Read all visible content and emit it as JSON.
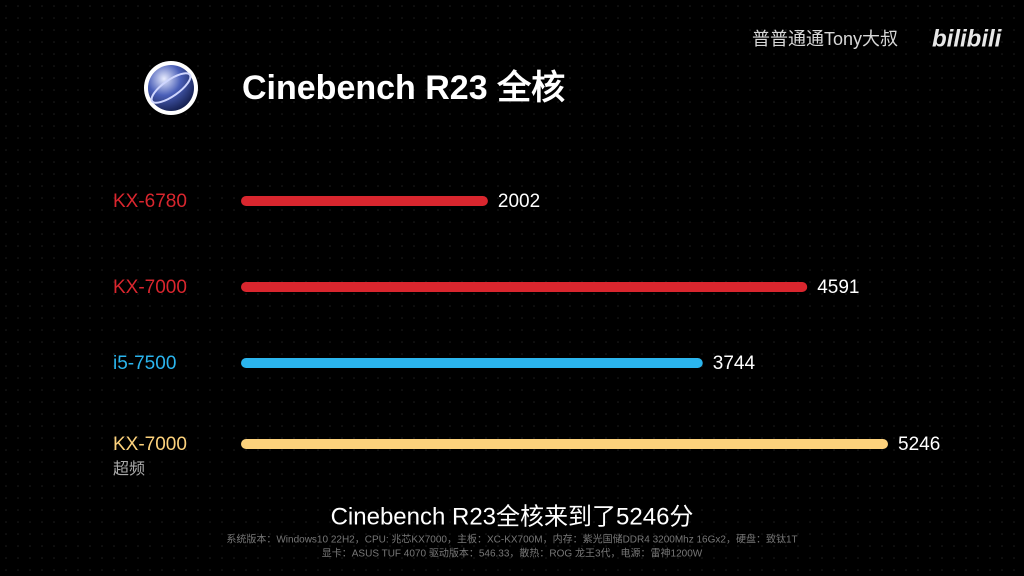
{
  "chart_data": {
    "type": "bar",
    "orientation": "horizontal",
    "title": "Cinebench R23 全核",
    "watermark": "普普通通Tony大叔",
    "platform": "bilibili",
    "caption": "Cinebench R23全核来到了5246分",
    "notes": [
      "系统版本：Windows10 22H2，CPU: 兆芯KX7000，主板：XC-KX700M，内存：紫光国储DDR4 3200Mhz 16Gx2，硬盘：致钛1T",
      "显卡：ASUS TUF 4070 驱动版本：546.33，散热：ROG 龙王3代，电源：雷神1200W"
    ],
    "categories": [
      "KX-6780",
      "KX-7000",
      "i5-7500",
      "KX-7000"
    ],
    "category_sublabels": [
      null,
      null,
      null,
      "超频"
    ],
    "values": [
      2002,
      4591,
      3744,
      5246
    ],
    "colors": [
      "#d9262e",
      "#d9262e",
      "#2bb5ee",
      "#fdd27c"
    ]
  }
}
